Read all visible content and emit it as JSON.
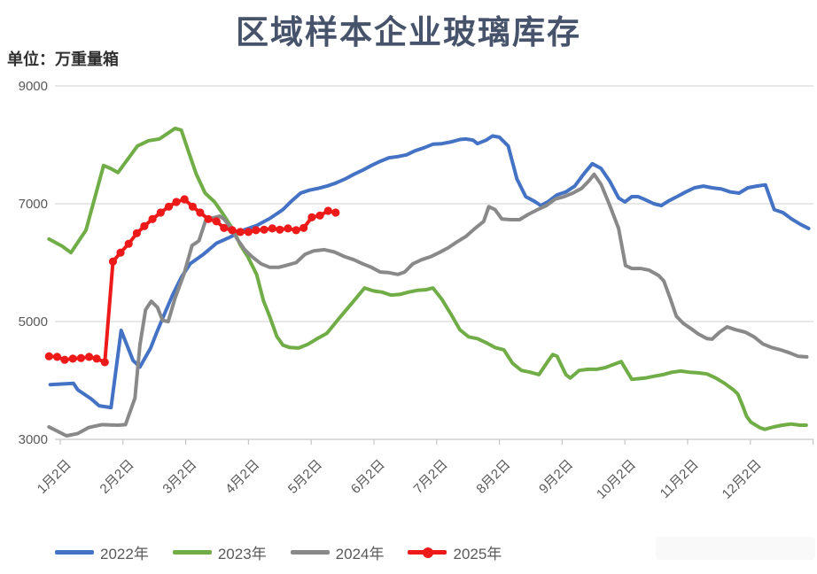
{
  "header": {
    "title": "区域样本企业玻璃库存",
    "unit_label": "单位：万重量箱"
  },
  "colors": {
    "series_2022": "#4472c4",
    "series_2023": "#70ad47",
    "series_2024": "#898989",
    "series_2025": "#ee1a1a",
    "gridline": "#d9d9d9",
    "axis_line": "#c6c6c6",
    "axis_text": "#595959",
    "title_text": "#46536a"
  },
  "chart_data": {
    "type": "line",
    "title": "区域样本企业玻璃库存",
    "y_unit": "万重量箱",
    "x_unit": "month_index",
    "x_tick_labels": [
      "1月2日",
      "2月2日",
      "3月2日",
      "4月2日",
      "5月2日",
      "6月2日",
      "7月2日",
      "8月2日",
      "9月2日",
      "10月2日",
      "11月2日",
      "12月2日"
    ],
    "y_ticks": [
      3000,
      5000,
      7000,
      9000
    ],
    "y_range": [
      3000,
      9000
    ],
    "x_range_months": [
      0.82,
      13.0
    ],
    "grid": "horizontal",
    "legend_position": "bottom",
    "series": [
      {
        "name": "2022年",
        "color": "#4472c4",
        "marker": false,
        "points": [
          [
            0.84,
            3930
          ],
          [
            1.21,
            3950
          ],
          [
            1.28,
            3840
          ],
          [
            1.49,
            3690
          ],
          [
            1.62,
            3570
          ],
          [
            1.81,
            3540
          ],
          [
            1.97,
            4850
          ],
          [
            2.16,
            4340
          ],
          [
            2.27,
            4230
          ],
          [
            2.44,
            4550
          ],
          [
            2.54,
            4820
          ],
          [
            2.65,
            5100
          ],
          [
            2.79,
            5450
          ],
          [
            2.93,
            5750
          ],
          [
            3.07,
            5980
          ],
          [
            3.28,
            6140
          ],
          [
            3.49,
            6330
          ],
          [
            3.7,
            6430
          ],
          [
            3.92,
            6550
          ],
          [
            4.13,
            6630
          ],
          [
            4.34,
            6750
          ],
          [
            4.55,
            6900
          ],
          [
            4.69,
            7050
          ],
          [
            4.83,
            7180
          ],
          [
            4.97,
            7230
          ],
          [
            5.11,
            7260
          ],
          [
            5.25,
            7300
          ],
          [
            5.39,
            7350
          ],
          [
            5.54,
            7420
          ],
          [
            5.68,
            7500
          ],
          [
            5.82,
            7570
          ],
          [
            5.96,
            7650
          ],
          [
            6.1,
            7720
          ],
          [
            6.24,
            7780
          ],
          [
            6.38,
            7800
          ],
          [
            6.52,
            7830
          ],
          [
            6.66,
            7900
          ],
          [
            6.8,
            7950
          ],
          [
            6.94,
            8010
          ],
          [
            7.08,
            8020
          ],
          [
            7.23,
            8050
          ],
          [
            7.37,
            8090
          ],
          [
            7.46,
            8100
          ],
          [
            7.58,
            8080
          ],
          [
            7.65,
            8020
          ],
          [
            7.79,
            8080
          ],
          [
            7.89,
            8150
          ],
          [
            8.0,
            8130
          ],
          [
            8.14,
            7980
          ],
          [
            8.28,
            7420
          ],
          [
            8.42,
            7120
          ],
          [
            8.56,
            7040
          ],
          [
            8.66,
            6970
          ],
          [
            8.77,
            7030
          ],
          [
            8.92,
            7150
          ],
          [
            9.06,
            7200
          ],
          [
            9.2,
            7300
          ],
          [
            9.34,
            7500
          ],
          [
            9.48,
            7680
          ],
          [
            9.62,
            7600
          ],
          [
            9.76,
            7380
          ],
          [
            9.9,
            7100
          ],
          [
            10.0,
            7030
          ],
          [
            10.11,
            7120
          ],
          [
            10.21,
            7120
          ],
          [
            10.32,
            7070
          ],
          [
            10.46,
            7000
          ],
          [
            10.58,
            6970
          ],
          [
            10.7,
            7050
          ],
          [
            10.83,
            7120
          ],
          [
            10.97,
            7200
          ],
          [
            11.11,
            7270
          ],
          [
            11.25,
            7300
          ],
          [
            11.39,
            7270
          ],
          [
            11.54,
            7250
          ],
          [
            11.68,
            7200
          ],
          [
            11.82,
            7180
          ],
          [
            11.96,
            7270
          ],
          [
            12.1,
            7300
          ],
          [
            12.24,
            7320
          ],
          [
            12.38,
            6900
          ],
          [
            12.52,
            6850
          ],
          [
            12.66,
            6740
          ],
          [
            12.8,
            6650
          ],
          [
            12.93,
            6580
          ]
        ]
      },
      {
        "name": "2023年",
        "color": "#70ad47",
        "marker": false,
        "points": [
          [
            0.82,
            6400
          ],
          [
            1.03,
            6280
          ],
          [
            1.17,
            6170
          ],
          [
            1.41,
            6550
          ],
          [
            1.69,
            7650
          ],
          [
            1.8,
            7600
          ],
          [
            1.92,
            7530
          ],
          [
            2.23,
            7980
          ],
          [
            2.41,
            8070
          ],
          [
            2.58,
            8100
          ],
          [
            2.72,
            8200
          ],
          [
            2.83,
            8280
          ],
          [
            2.93,
            8250
          ],
          [
            3.04,
            7900
          ],
          [
            3.17,
            7500
          ],
          [
            3.31,
            7180
          ],
          [
            3.46,
            7030
          ],
          [
            3.61,
            6800
          ],
          [
            3.76,
            6550
          ],
          [
            3.87,
            6300
          ],
          [
            3.99,
            6100
          ],
          [
            4.13,
            5800
          ],
          [
            4.24,
            5350
          ],
          [
            4.34,
            5080
          ],
          [
            4.45,
            4750
          ],
          [
            4.55,
            4600
          ],
          [
            4.66,
            4560
          ],
          [
            4.8,
            4550
          ],
          [
            4.94,
            4610
          ],
          [
            5.08,
            4700
          ],
          [
            5.25,
            4800
          ],
          [
            5.44,
            5050
          ],
          [
            5.68,
            5350
          ],
          [
            5.85,
            5570
          ],
          [
            5.99,
            5520
          ],
          [
            6.13,
            5500
          ],
          [
            6.27,
            5450
          ],
          [
            6.41,
            5460
          ],
          [
            6.55,
            5500
          ],
          [
            6.69,
            5530
          ],
          [
            6.83,
            5540
          ],
          [
            6.94,
            5570
          ],
          [
            7.08,
            5380
          ],
          [
            7.23,
            5120
          ],
          [
            7.37,
            4860
          ],
          [
            7.51,
            4740
          ],
          [
            7.65,
            4710
          ],
          [
            7.79,
            4640
          ],
          [
            7.93,
            4560
          ],
          [
            8.07,
            4520
          ],
          [
            8.21,
            4290
          ],
          [
            8.35,
            4170
          ],
          [
            8.49,
            4140
          ],
          [
            8.63,
            4100
          ],
          [
            8.77,
            4320
          ],
          [
            8.85,
            4440
          ],
          [
            8.92,
            4410
          ],
          [
            9.06,
            4100
          ],
          [
            9.13,
            4040
          ],
          [
            9.27,
            4170
          ],
          [
            9.41,
            4190
          ],
          [
            9.55,
            4190
          ],
          [
            9.69,
            4220
          ],
          [
            9.94,
            4320
          ],
          [
            10.11,
            4020
          ],
          [
            10.32,
            4040
          ],
          [
            10.46,
            4070
          ],
          [
            10.61,
            4100
          ],
          [
            10.75,
            4140
          ],
          [
            10.89,
            4160
          ],
          [
            11.03,
            4140
          ],
          [
            11.17,
            4130
          ],
          [
            11.31,
            4110
          ],
          [
            11.45,
            4040
          ],
          [
            11.59,
            3950
          ],
          [
            11.73,
            3840
          ],
          [
            11.8,
            3770
          ],
          [
            11.87,
            3590
          ],
          [
            11.94,
            3390
          ],
          [
            12.01,
            3290
          ],
          [
            12.15,
            3200
          ],
          [
            12.23,
            3170
          ],
          [
            12.37,
            3210
          ],
          [
            12.51,
            3240
          ],
          [
            12.65,
            3260
          ],
          [
            12.79,
            3240
          ],
          [
            12.89,
            3240
          ]
        ]
      },
      {
        "name": "2024年",
        "color": "#898989",
        "marker": false,
        "points": [
          [
            0.82,
            3210
          ],
          [
            1.1,
            3060
          ],
          [
            1.28,
            3100
          ],
          [
            1.45,
            3200
          ],
          [
            1.66,
            3250
          ],
          [
            1.92,
            3240
          ],
          [
            2.04,
            3250
          ],
          [
            2.19,
            3700
          ],
          [
            2.27,
            4600
          ],
          [
            2.36,
            5200
          ],
          [
            2.45,
            5345
          ],
          [
            2.55,
            5240
          ],
          [
            2.63,
            5020
          ],
          [
            2.72,
            5000
          ],
          [
            2.83,
            5400
          ],
          [
            2.97,
            5800
          ],
          [
            3.1,
            6290
          ],
          [
            3.21,
            6370
          ],
          [
            3.32,
            6730
          ],
          [
            3.54,
            6790
          ],
          [
            3.61,
            6740
          ],
          [
            3.73,
            6580
          ],
          [
            3.82,
            6400
          ],
          [
            3.94,
            6220
          ],
          [
            4.06,
            6100
          ],
          [
            4.2,
            5980
          ],
          [
            4.34,
            5920
          ],
          [
            4.48,
            5920
          ],
          [
            4.59,
            5950
          ],
          [
            4.76,
            6000
          ],
          [
            4.9,
            6140
          ],
          [
            5.04,
            6200
          ],
          [
            5.21,
            6220
          ],
          [
            5.37,
            6180
          ],
          [
            5.54,
            6100
          ],
          [
            5.68,
            6050
          ],
          [
            5.82,
            5980
          ],
          [
            5.96,
            5920
          ],
          [
            6.1,
            5840
          ],
          [
            6.24,
            5830
          ],
          [
            6.38,
            5800
          ],
          [
            6.49,
            5840
          ],
          [
            6.62,
            5980
          ],
          [
            6.76,
            6050
          ],
          [
            6.9,
            6100
          ],
          [
            7.04,
            6170
          ],
          [
            7.18,
            6250
          ],
          [
            7.32,
            6350
          ],
          [
            7.46,
            6440
          ],
          [
            7.61,
            6580
          ],
          [
            7.75,
            6700
          ],
          [
            7.83,
            6950
          ],
          [
            7.93,
            6900
          ],
          [
            8.04,
            6740
          ],
          [
            8.18,
            6730
          ],
          [
            8.32,
            6730
          ],
          [
            8.46,
            6820
          ],
          [
            8.61,
            6900
          ],
          [
            8.75,
            6970
          ],
          [
            8.89,
            7080
          ],
          [
            9.03,
            7120
          ],
          [
            9.17,
            7180
          ],
          [
            9.31,
            7260
          ],
          [
            9.42,
            7380
          ],
          [
            9.51,
            7500
          ],
          [
            9.62,
            7330
          ],
          [
            9.76,
            6970
          ],
          [
            9.9,
            6580
          ],
          [
            10.01,
            5950
          ],
          [
            10.11,
            5900
          ],
          [
            10.25,
            5900
          ],
          [
            10.39,
            5870
          ],
          [
            10.54,
            5780
          ],
          [
            10.62,
            5690
          ],
          [
            10.72,
            5400
          ],
          [
            10.82,
            5090
          ],
          [
            10.93,
            4970
          ],
          [
            11.04,
            4890
          ],
          [
            11.17,
            4790
          ],
          [
            11.31,
            4710
          ],
          [
            11.39,
            4700
          ],
          [
            11.51,
            4820
          ],
          [
            11.63,
            4910
          ],
          [
            11.77,
            4860
          ],
          [
            11.92,
            4820
          ],
          [
            12.06,
            4740
          ],
          [
            12.2,
            4620
          ],
          [
            12.34,
            4560
          ],
          [
            12.48,
            4520
          ],
          [
            12.62,
            4470
          ],
          [
            12.76,
            4410
          ],
          [
            12.9,
            4400
          ]
        ]
      },
      {
        "name": "2025年",
        "color": "#ee1a1a",
        "marker": true,
        "points": [
          [
            0.82,
            4410
          ],
          [
            0.95,
            4400
          ],
          [
            1.07,
            4350
          ],
          [
            1.2,
            4370
          ],
          [
            1.33,
            4380
          ],
          [
            1.46,
            4400
          ],
          [
            1.58,
            4370
          ],
          [
            1.71,
            4310
          ],
          [
            1.84,
            6020
          ],
          [
            1.96,
            6170
          ],
          [
            2.09,
            6320
          ],
          [
            2.22,
            6500
          ],
          [
            2.34,
            6620
          ],
          [
            2.47,
            6740
          ],
          [
            2.6,
            6850
          ],
          [
            2.73,
            6950
          ],
          [
            2.85,
            7030
          ],
          [
            2.98,
            7075
          ],
          [
            3.11,
            6950
          ],
          [
            3.23,
            6850
          ],
          [
            3.36,
            6740
          ],
          [
            3.49,
            6700
          ],
          [
            3.61,
            6590
          ],
          [
            3.74,
            6550
          ],
          [
            3.87,
            6520
          ],
          [
            4.0,
            6520
          ],
          [
            4.12,
            6550
          ],
          [
            4.25,
            6560
          ],
          [
            4.38,
            6580
          ],
          [
            4.5,
            6560
          ],
          [
            4.63,
            6580
          ],
          [
            4.76,
            6550
          ],
          [
            4.88,
            6590
          ],
          [
            5.01,
            6770
          ],
          [
            5.14,
            6800
          ],
          [
            5.27,
            6880
          ],
          [
            5.39,
            6850
          ]
        ]
      }
    ]
  }
}
